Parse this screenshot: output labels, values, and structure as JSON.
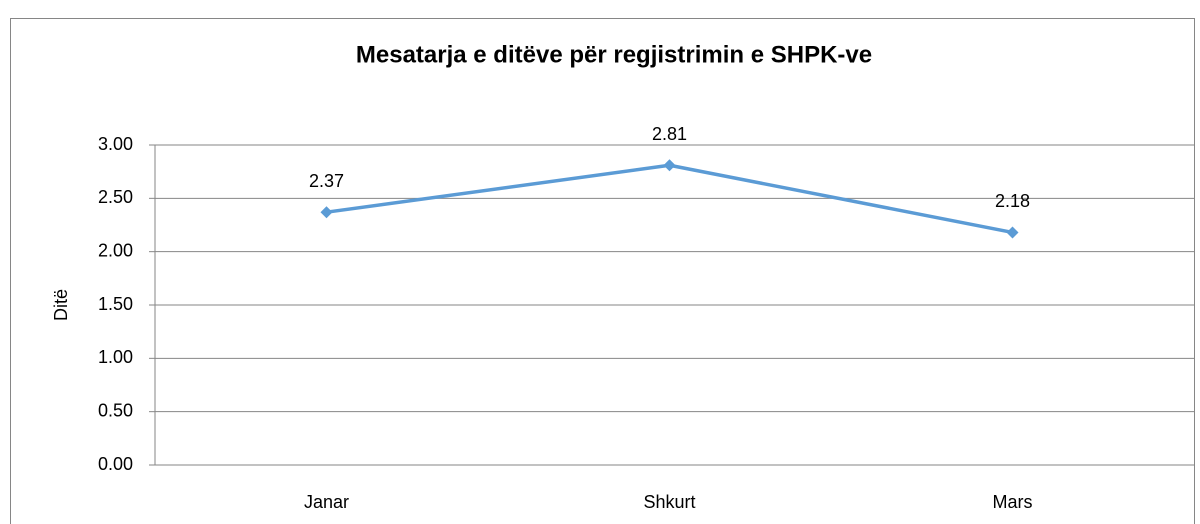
{
  "chart_data": {
    "type": "line",
    "title": "Mesatarja e ditëve për regjistrimin e SHPK-ve",
    "ylabel": "Ditë",
    "categories": [
      "Janar",
      "Shkurt",
      "Mars"
    ],
    "series": [
      {
        "name": "Ditë",
        "color": "#5b9bd5",
        "values": [
          2.37,
          2.81,
          2.18
        ],
        "value_labels": [
          "2.37",
          "2.81",
          "2.18"
        ]
      }
    ],
    "ylim": [
      0,
      3
    ],
    "yticks": [
      {
        "value": 0,
        "label": "0.00"
      },
      {
        "value": 0.5,
        "label": "0.50"
      },
      {
        "value": 1,
        "label": "1.00"
      },
      {
        "value": 1.5,
        "label": "1.50"
      },
      {
        "value": 2,
        "label": "2.00"
      },
      {
        "value": 2.5,
        "label": "2.50"
      },
      {
        "value": 3,
        "label": "3.00"
      }
    ],
    "grid": true
  }
}
